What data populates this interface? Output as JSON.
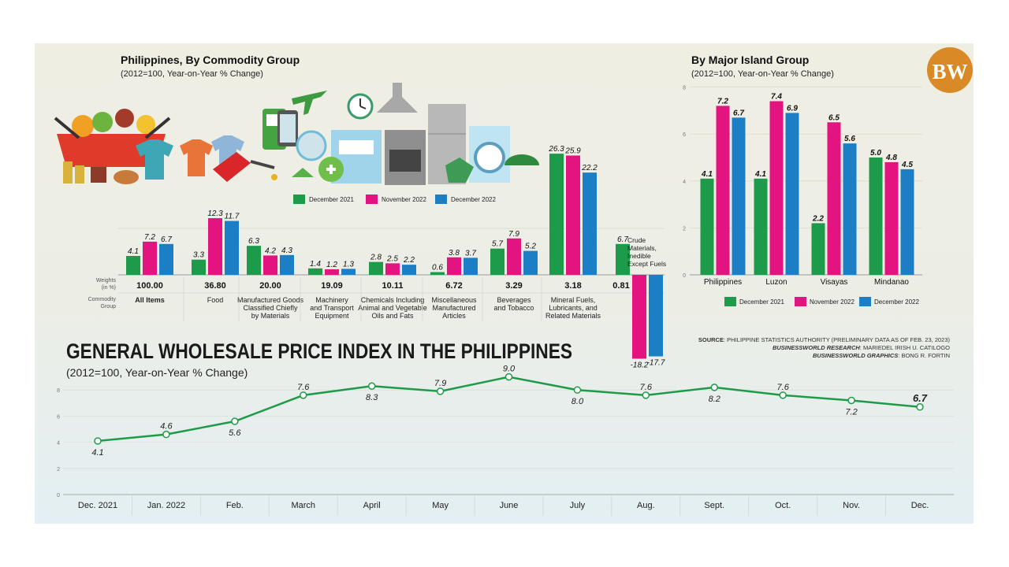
{
  "logo": {
    "text": "BW",
    "color": "#d98a26"
  },
  "colors": {
    "dec2021": "#1d9a4a",
    "nov2022": "#e3147f",
    "dec2022": "#1c7fc6",
    "line": "#1f9a48"
  },
  "credits": {
    "source_label": "SOURCE",
    "source": "PHILIPPINE STATISTICS AUTHORITY (PRELIMINARY DATA AS OF FEB. 23, 2023)",
    "research_label": "BUSINESSWORLD RESEARCH",
    "research": "MARIEDEL IRISH U. CATILOGO",
    "graphics_label": "BUSINESSWORLD GRAPHICS",
    "graphics": "BONG R. FORTIN"
  },
  "chart_data": [
    {
      "type": "bar",
      "title": "Philippines, By Commodity Group",
      "subtitle": "(2012=100, Year-on-Year % Change)",
      "weights_label": "Weights (in %)",
      "group_label": "Commodity Group",
      "categories": [
        "All Items",
        "Food",
        "Manufactured Goods Classified Chiefly by Materials",
        "Machinery and Transport Equipment",
        "Chemicals Including Animal and Vegetable Oils and Fats",
        "Miscellaneous Manufactured Articles",
        "Beverages and Tobacco",
        "Mineral Fuels, Lubricants, and Related Materials",
        "Crude Materials, Inedible Except Fuels"
      ],
      "weights": [
        "100.00",
        "36.80",
        "20.00",
        "19.09",
        "10.11",
        "6.72",
        "3.29",
        "3.18",
        "0.81"
      ],
      "series": [
        {
          "name": "December 2021",
          "values": [
            4.1,
            3.3,
            6.3,
            1.4,
            2.8,
            0.6,
            5.7,
            26.3,
            6.7
          ]
        },
        {
          "name": "November 2022",
          "values": [
            7.2,
            12.3,
            4.2,
            1.2,
            2.5,
            3.8,
            7.9,
            25.9,
            -18.2
          ]
        },
        {
          "name": "December 2022",
          "values": [
            6.7,
            11.7,
            4.3,
            1.3,
            2.2,
            3.7,
            5.2,
            22.2,
            -17.7
          ]
        }
      ],
      "legend": "top-center"
    },
    {
      "type": "bar",
      "title": "By Major Island Group",
      "subtitle": "(2012=100, Year-on-Year % Change)",
      "categories": [
        "Philippines",
        "Luzon",
        "Visayas",
        "Mindanao"
      ],
      "yticks": [
        0,
        2,
        4,
        6,
        8
      ],
      "ylim": [
        0,
        8
      ],
      "grid": true,
      "series": [
        {
          "name": "December 2021",
          "values": [
            4.1,
            4.1,
            2.2,
            5.0
          ]
        },
        {
          "name": "November 2022",
          "values": [
            7.2,
            7.4,
            6.5,
            4.8
          ]
        },
        {
          "name": "December 2022",
          "values": [
            6.7,
            6.9,
            5.6,
            4.5
          ]
        }
      ],
      "legend": "bottom"
    },
    {
      "type": "line",
      "title": "GENERAL WHOLESALE PRICE INDEX IN THE PHILIPPINES",
      "subtitle": "(2012=100, Year-on-Year % Change)",
      "categories": [
        "Dec. 2021",
        "Jan. 2022",
        "Feb.",
        "March",
        "April",
        "May",
        "June",
        "July",
        "Aug.",
        "Sept.",
        "Oct.",
        "Nov.",
        "Dec."
      ],
      "values": [
        4.1,
        4.6,
        5.6,
        7.6,
        8.3,
        7.9,
        9.0,
        8.0,
        7.6,
        8.2,
        7.6,
        7.2,
        6.7
      ],
      "yticks": [
        0,
        2,
        4,
        6,
        8
      ],
      "ylim": [
        0,
        9
      ],
      "grid": true
    }
  ]
}
